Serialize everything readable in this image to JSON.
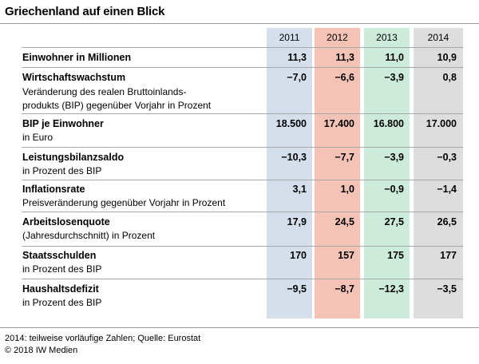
{
  "title": "Griechenland auf einen Blick",
  "colors": {
    "2011": "#d5dfec",
    "2012": "#f5c3b6",
    "2013": "#cdebdb",
    "2014": "#dddddd"
  },
  "years": [
    "2011",
    "2012",
    "2013",
    "2014"
  ],
  "rows": [
    {
      "label": "Einwohner in Millionen",
      "sub": "",
      "values": [
        "11,3",
        "11,3",
        "11,0",
        "10,9"
      ]
    },
    {
      "label": "Wirtschaftswachstum",
      "sub": "Veränderung des realen Bruttoinlands-produkts (BIP) gegenüber Vorjahr in Prozent",
      "sub_lines": [
        "Veränderung des realen Bruttoinlands-",
        "produkts (BIP) gegenüber Vorjahr in Prozent"
      ],
      "values": [
        "−7,0",
        "−6,6",
        "−3,9",
        "0,8"
      ]
    },
    {
      "label": "BIP je Einwohner",
      "sub": "in Euro",
      "values": [
        "18.500",
        "17.400",
        "16.800",
        "17.000"
      ]
    },
    {
      "label": "Leistungsbilanzsaldo",
      "sub": "in Prozent des BIP",
      "values": [
        "−10,3",
        "−7,7",
        "−3,9",
        "−0,3"
      ]
    },
    {
      "label": "Inflationsrate",
      "sub": "Preisveränderung gegenüber Vorjahr in Prozent",
      "values": [
        "3,1",
        "1,0",
        "−0,9",
        "−1,4"
      ]
    },
    {
      "label": "Arbeitslosenquote",
      "sub": "(Jahresdurchschnitt) in Prozent",
      "values": [
        "17,9",
        "24,5",
        "27,5",
        "26,5"
      ]
    },
    {
      "label": "Staatsschulden",
      "sub": "in Prozent des BIP",
      "values": [
        "170",
        "157",
        "175",
        "177"
      ]
    },
    {
      "label": "Haushaltsdefizit",
      "sub": "in Prozent des BIP",
      "values": [
        "−9,5",
        "−8,7",
        "−12,3",
        "−3,5"
      ]
    }
  ],
  "footer": {
    "note": "2014: teilweise vorläufige Zahlen; Quelle: Eurostat",
    "copyright": "© 2018 IW Medien"
  }
}
